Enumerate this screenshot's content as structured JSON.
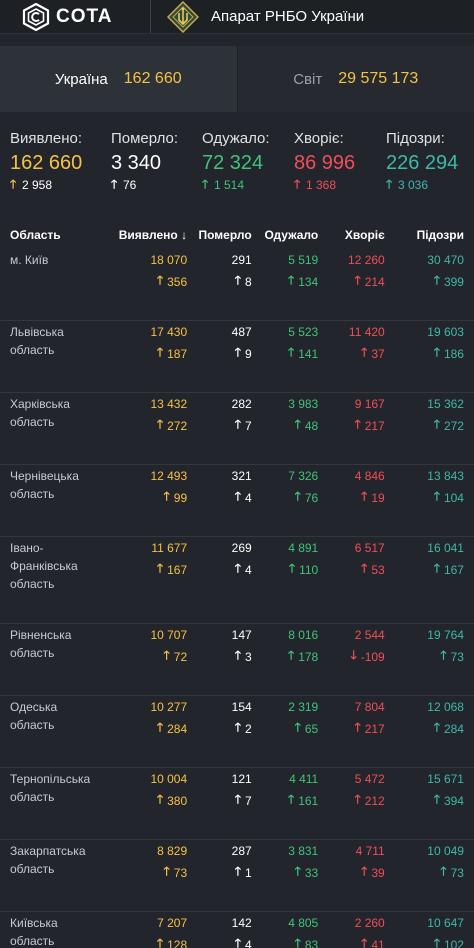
{
  "header": {
    "logo_text": "COTA",
    "org_title": "Апарат РНБО України"
  },
  "scope": {
    "ukraine_label": "Україна",
    "ukraine_value": "162 660",
    "world_label": "Світ",
    "world_value": "29 575 173"
  },
  "stats": [
    {
      "label": "Виявлено:",
      "value": "162 660",
      "delta": "2 958",
      "dir": "up",
      "color": "yellow"
    },
    {
      "label": "Померло:",
      "value": "3 340",
      "delta": "76",
      "dir": "up",
      "color": "white"
    },
    {
      "label": "Одужало:",
      "value": "72 324",
      "delta": "1 514",
      "dir": "up",
      "color": "green"
    },
    {
      "label": "Хворіє:",
      "value": "86 996",
      "delta": "1 368",
      "dir": "up",
      "color": "red"
    },
    {
      "label": "Підозри:",
      "value": "226 294",
      "delta": "3 036",
      "dir": "up",
      "color": "teal"
    }
  ],
  "table": {
    "headers": {
      "region": "Область",
      "detected": "Виявлено",
      "sort_icon": "↓",
      "died": "Померло",
      "recovered": "Одужало",
      "sick": "Хворіє",
      "suspected": "Підозри"
    },
    "rows": [
      {
        "region": "м. Київ",
        "detected": "18 070",
        "detected_d": "356",
        "died": "291",
        "died_d": "8",
        "recovered": "5 519",
        "recovered_d": "134",
        "sick": "12 260",
        "sick_d": "214",
        "sick_dir": "up",
        "suspected": "30 470",
        "suspected_d": "399"
      },
      {
        "region": "Львівська область",
        "detected": "17 430",
        "detected_d": "187",
        "died": "487",
        "died_d": "9",
        "recovered": "5 523",
        "recovered_d": "141",
        "sick": "11 420",
        "sick_d": "37",
        "sick_dir": "up",
        "suspected": "19 603",
        "suspected_d": "186"
      },
      {
        "region": "Харківська область",
        "detected": "13 432",
        "detected_d": "272",
        "died": "282",
        "died_d": "7",
        "recovered": "3 983",
        "recovered_d": "48",
        "sick": "9 167",
        "sick_d": "217",
        "sick_dir": "up",
        "suspected": "15 362",
        "suspected_d": "272"
      },
      {
        "region": "Чернівецька область",
        "detected": "12 493",
        "detected_d": "99",
        "died": "321",
        "died_d": "4",
        "recovered": "7 326",
        "recovered_d": "76",
        "sick": "4 846",
        "sick_d": "19",
        "sick_dir": "up",
        "suspected": "13 843",
        "suspected_d": "104"
      },
      {
        "region": "Івано-Франківська область",
        "detected": "11 677",
        "detected_d": "167",
        "died": "269",
        "died_d": "4",
        "recovered": "4 891",
        "recovered_d": "110",
        "sick": "6 517",
        "sick_d": "53",
        "sick_dir": "up",
        "suspected": "16 041",
        "suspected_d": "167",
        "tall": true
      },
      {
        "region": "Рівненська область",
        "detected": "10 707",
        "detected_d": "72",
        "died": "147",
        "died_d": "3",
        "recovered": "8 016",
        "recovered_d": "178",
        "sick": "2 544",
        "sick_d": "-109",
        "sick_dir": "down",
        "suspected": "19 764",
        "suspected_d": "73"
      },
      {
        "region": "Одеська область",
        "detected": "10 277",
        "detected_d": "284",
        "died": "154",
        "died_d": "2",
        "recovered": "2 319",
        "recovered_d": "65",
        "sick": "7 804",
        "sick_d": "217",
        "sick_dir": "up",
        "suspected": "12 068",
        "suspected_d": "284"
      },
      {
        "region": "Тернопільська область",
        "detected": "10 004",
        "detected_d": "380",
        "died": "121",
        "died_d": "7",
        "recovered": "4 411",
        "recovered_d": "161",
        "sick": "5 472",
        "sick_d": "212",
        "sick_dir": "up",
        "suspected": "15 671",
        "suspected_d": "394"
      },
      {
        "region": "Закарпатська область",
        "detected": "8 829",
        "detected_d": "73",
        "died": "287",
        "died_d": "1",
        "recovered": "3 831",
        "recovered_d": "33",
        "sick": "4 711",
        "sick_d": "39",
        "sick_dir": "up",
        "suspected": "10 049",
        "suspected_d": "73"
      },
      {
        "region": "Київська область",
        "detected": "7 207",
        "detected_d": "128",
        "died": "142",
        "died_d": "4",
        "recovered": "4 805",
        "recovered_d": "83",
        "sick": "2 260",
        "sick_d": "41",
        "sick_dir": "up",
        "suspected": "10 647",
        "suspected_d": "102"
      }
    ]
  },
  "colors": {
    "yellow": "#f6c244",
    "white": "#ffffff",
    "green": "#3fc47a",
    "red": "#f04e5a",
    "teal": "#3fb8a8"
  },
  "icons": {
    "logo": "cota-logo-icon",
    "emblem": "rnbo-emblem-icon",
    "up": "arrow-up-icon",
    "down": "arrow-down-icon"
  }
}
